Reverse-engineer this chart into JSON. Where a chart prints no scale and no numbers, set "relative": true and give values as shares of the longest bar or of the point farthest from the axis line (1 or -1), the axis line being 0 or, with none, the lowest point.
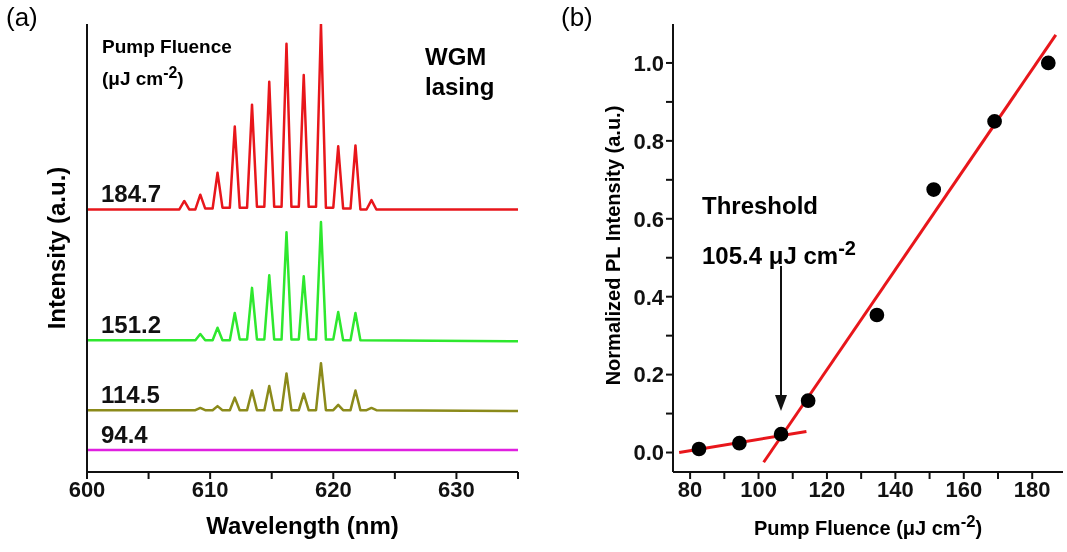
{
  "chart_data": [
    {
      "type": "line",
      "title": "(a)",
      "xlabel": "Wavelength (nm)",
      "ylabel": "Intensity (a.u.)",
      "legend_title": "Pump Fluence (μJ cm$^{-2}$)",
      "annotations": [
        "WGM lasing"
      ],
      "relative": true,
      "xlim": [
        600,
        635
      ],
      "xticks": [
        600,
        {
          "value": 605,
          "label": null
        },
        610,
        {
          "value": 615,
          "label": null
        },
        620,
        {
          "value": 625,
          "label": null
        },
        630,
        {
          "value": 635,
          "label": null
        }
      ],
      "grid": false,
      "line_style": "solid",
      "series": [
        {
          "name": "184.7",
          "color": "#e8161b",
          "x": [
            600,
            607.5,
            607.9,
            608.3,
            608.8,
            609.2,
            609.6,
            610.2,
            610.6,
            611.0,
            611.6,
            612.0,
            612.4,
            613.0,
            613.4,
            613.8,
            614.4,
            614.8,
            615.2,
            615.8,
            616.2,
            616.6,
            617.2,
            617.6,
            618.0,
            618.6,
            619.0,
            619.4,
            620.0,
            620.4,
            620.8,
            621.4,
            621.8,
            622.2,
            622.7,
            623.1,
            623.5,
            635
          ],
          "values": [
            0.586,
            0.586,
            0.605,
            0.586,
            0.586,
            0.619,
            0.588,
            0.588,
            0.668,
            0.59,
            0.59,
            0.771,
            0.59,
            0.59,
            0.82,
            0.592,
            0.592,
            0.871,
            0.592,
            0.592,
            0.956,
            0.592,
            0.592,
            0.886,
            0.592,
            0.592,
            1.0,
            0.59,
            0.59,
            0.727,
            0.588,
            0.588,
            0.729,
            0.586,
            0.586,
            0.607,
            0.586,
            0.586
          ]
        },
        {
          "name": "151.2",
          "color": "#2ee82e",
          "x": [
            600,
            608.8,
            609.2,
            609.6,
            610.2,
            610.6,
            611.0,
            611.6,
            612.0,
            612.4,
            613.0,
            613.4,
            613.8,
            614.4,
            614.8,
            615.2,
            615.8,
            616.2,
            616.6,
            617.2,
            617.6,
            618.0,
            618.6,
            619.0,
            619.4,
            620.0,
            620.4,
            620.8,
            621.4,
            621.8,
            622.2,
            635
          ],
          "values": [
            0.294,
            0.294,
            0.308,
            0.294,
            0.294,
            0.322,
            0.294,
            0.294,
            0.355,
            0.296,
            0.296,
            0.411,
            0.296,
            0.296,
            0.439,
            0.296,
            0.296,
            0.535,
            0.296,
            0.296,
            0.437,
            0.296,
            0.296,
            0.558,
            0.296,
            0.296,
            0.357,
            0.294,
            0.294,
            0.355,
            0.294,
            0.292
          ]
        },
        {
          "name": "114.5",
          "color": "#8b8a1a",
          "x": [
            600,
            608.8,
            609.2,
            609.6,
            610.2,
            610.6,
            611.0,
            611.6,
            612.0,
            612.4,
            613.0,
            613.4,
            613.8,
            614.4,
            614.8,
            615.2,
            615.8,
            616.2,
            616.6,
            617.2,
            617.6,
            618.0,
            618.6,
            619.0,
            619.4,
            620.0,
            620.4,
            620.8,
            621.4,
            621.8,
            622.2,
            622.7,
            623.1,
            623.5,
            635
          ],
          "values": [
            0.138,
            0.138,
            0.143,
            0.138,
            0.138,
            0.147,
            0.138,
            0.138,
            0.166,
            0.138,
            0.138,
            0.182,
            0.138,
            0.138,
            0.192,
            0.138,
            0.138,
            0.22,
            0.138,
            0.138,
            0.175,
            0.138,
            0.138,
            0.243,
            0.138,
            0.138,
            0.15,
            0.138,
            0.138,
            0.182,
            0.138,
            0.138,
            0.143,
            0.138,
            0.136
          ]
        },
        {
          "name": "94.4",
          "color": "#e020e0",
          "x": [
            600,
            635
          ],
          "values": [
            0.049,
            0.049
          ]
        }
      ]
    },
    {
      "type": "scatter",
      "title": "(b)",
      "xlabel": "Pump Fluence (μJ cm$^{-2}$)",
      "ylabel": "Normalized PL Intensity (a.u.)",
      "annotations": [
        "Threshold\n105.4 μJ cm$^{-2}$"
      ],
      "xlim": [
        75,
        189
      ],
      "ylim": [
        -0.05,
        1.1
      ],
      "xticks": [
        80,
        {
          "value": 90,
          "label": null
        },
        100,
        {
          "value": 110,
          "label": null
        },
        120,
        {
          "value": 130,
          "label": null
        },
        140,
        {
          "value": 150,
          "label": null
        },
        160,
        {
          "value": 170,
          "label": null
        },
        180
      ],
      "yticks": [
        {
          "value": 0,
          "label": "0.0"
        },
        {
          "value": 0.1,
          "label": null
        },
        0.2,
        {
          "value": 0.3,
          "label": null
        },
        0.4,
        {
          "value": 0.5,
          "label": null
        },
        0.6,
        {
          "value": 0.7,
          "label": null
        },
        0.8,
        {
          "value": 0.9,
          "label": null
        },
        {
          "value": 1.0,
          "label": "1.0"
        }
      ],
      "grid": false,
      "line_style": "solid",
      "series": [
        {
          "type": "scatter",
          "marker": "circle",
          "color": "#000000",
          "x": [
            82.6,
            94.4,
            106.6,
            114.5,
            134.6,
            151.2,
            169.0,
            184.7
          ],
          "values": [
            0.009,
            0.024,
            0.047,
            0.133,
            0.353,
            0.675,
            0.85,
            1.0
          ]
        },
        {
          "type": "line",
          "color": "#e8161b",
          "x": [
            76.8,
            114.0
          ],
          "values": [
            0.0,
            0.054
          ]
        },
        {
          "type": "line",
          "color": "#e8161b",
          "x": [
            101.5,
            186.9
          ],
          "values": [
            -0.025,
            1.072
          ]
        }
      ]
    }
  ]
}
